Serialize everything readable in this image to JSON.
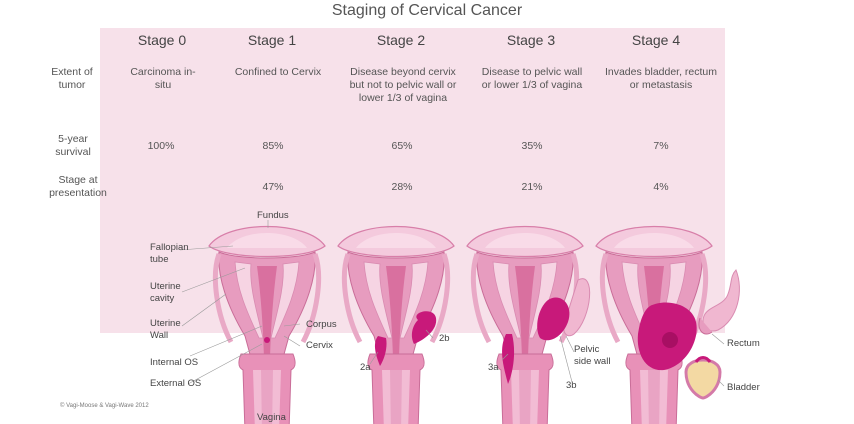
{
  "title": "Staging of Cervical Cancer",
  "row_labels": {
    "extent": "Extent of tumor",
    "survival": "5-year survival",
    "presentation": "Stage at presentation"
  },
  "stages": [
    {
      "name": "Stage 0",
      "extent": "Carcinoma in-situ",
      "survival": "100%",
      "presentation": ""
    },
    {
      "name": "Stage 1",
      "extent": "Confined to Cervix",
      "survival": "85%",
      "presentation": "47%"
    },
    {
      "name": "Stage 2",
      "extent": "Disease beyond cervix but not to pelvic wall or lower 1/3 of vagina",
      "survival": "65%",
      "presentation": "28%"
    },
    {
      "name": "Stage 3",
      "extent": "Disease to pelvic wall or lower 1/3 of vagina",
      "survival": "35%",
      "presentation": "21%"
    },
    {
      "name": "Stage 4",
      "extent": "Invades bladder, rectum or metastasis",
      "survival": "7%",
      "presentation": "4%"
    }
  ],
  "anatomy": {
    "fundus": "Fundus",
    "fallopian": "Fallopian tube",
    "uterine_cavity": "Uterine cavity",
    "uterine_wall": "Uterine Wall",
    "corpus": "Corpus",
    "cervix": "Cervix",
    "internal_os": "Internal OS",
    "external_os": "External OS",
    "vagina": "Vagina",
    "s2a": "2a",
    "s2b": "2b",
    "s3a": "3a",
    "s3b": "3b",
    "pelvic_side_wall": "Pelvic side wall",
    "rectum": "Rectum",
    "bladder": "Bladder"
  },
  "copyright": "© Vagi-Moose & Vagi-Wave 2012",
  "colors": {
    "panel": "#f7e1ea",
    "uterus": "#e79cbf",
    "uterus_light": "#f4cadd",
    "tumor": "#c8197a",
    "tumor_dark": "#a80f63"
  }
}
